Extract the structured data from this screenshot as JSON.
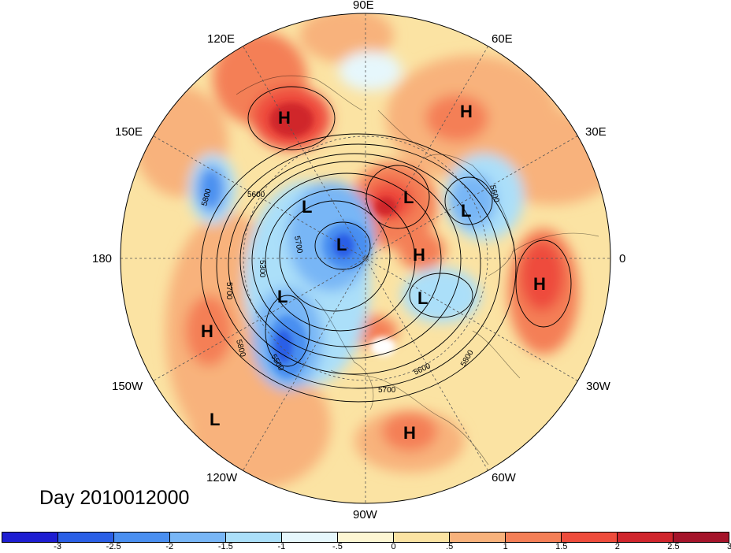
{
  "title": "Day 2010012000",
  "longitude_labels": [
    "90E",
    "60E",
    "30E",
    "0",
    "30W",
    "60W",
    "90W",
    "120W",
    "150W",
    "180",
    "150E",
    "120E"
  ],
  "contour_labels": [
    "5800",
    "5600",
    "5300",
    "5700",
    "5700",
    "5500",
    "5800",
    "5600",
    "5700",
    "5800",
    "5600"
  ],
  "pressure_centers": [
    "H",
    "H",
    "L",
    "L",
    "L",
    "L",
    "H",
    "L",
    "L",
    "H",
    "H",
    "L",
    "H"
  ],
  "colorbar": {
    "tick_labels": [
      "-3",
      "-2.5",
      "-2",
      "-1.5",
      "-1",
      "-.5",
      "0",
      ".5",
      "1",
      "1.5",
      "2",
      "2.5",
      "3"
    ],
    "colors": [
      "#1e1ed2",
      "#2a5fe6",
      "#4a8ff0",
      "#78b6f6",
      "#abdff9",
      "#e6f7fc",
      "#fdf6d3",
      "#fbe3a3",
      "#f8b27c",
      "#f47f57",
      "#ee4c3c",
      "#d0252c",
      "#a5142a"
    ]
  }
}
